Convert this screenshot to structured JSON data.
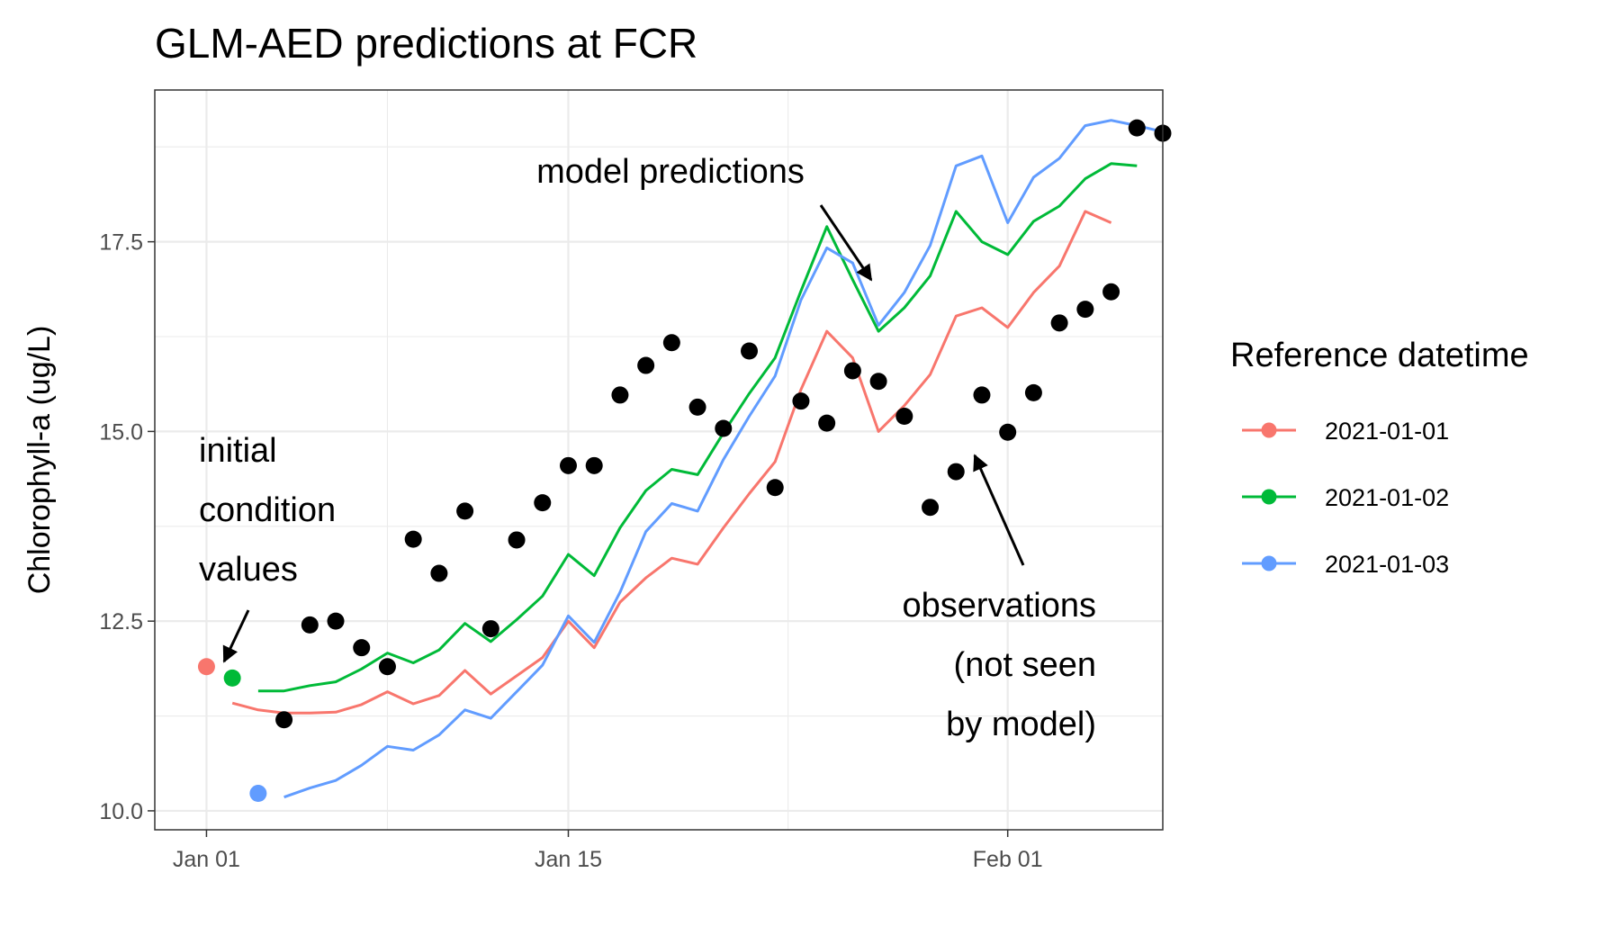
{
  "chart_data": {
    "type": "line",
    "title": "GLM-AED predictions at FCR",
    "xlabel": "",
    "ylabel": "Chlorophyll-a (ug/L)",
    "x_ticks": [
      {
        "date": "2021-01-01",
        "label": "Jan 01"
      },
      {
        "date": "2021-01-15",
        "label": "Jan 15"
      },
      {
        "date": "2021-02-01",
        "label": "Feb 01"
      }
    ],
    "y_ticks": [
      10.0,
      12.5,
      15.0,
      17.5
    ],
    "y_tick_labels": [
      "10.0",
      "12.5",
      "15.0",
      "17.5"
    ],
    "xlim": [
      "2020-12-30",
      "2021-02-07"
    ],
    "ylim": [
      9.75,
      19.5
    ],
    "grid": true,
    "legend": {
      "title": "Reference datetime",
      "position": "right"
    },
    "series": [
      {
        "name": "2021-01-01",
        "color": "#F8766D",
        "initial_condition": {
          "x": "2021-01-01",
          "y": 11.9
        },
        "x": [
          "2021-01-02",
          "2021-01-03",
          "2021-01-04",
          "2021-01-05",
          "2021-01-06",
          "2021-01-07",
          "2021-01-08",
          "2021-01-09",
          "2021-01-10",
          "2021-01-11",
          "2021-01-12",
          "2021-01-13",
          "2021-01-14",
          "2021-01-15",
          "2021-01-16",
          "2021-01-17",
          "2021-01-18",
          "2021-01-19",
          "2021-01-20",
          "2021-01-21",
          "2021-01-22",
          "2021-01-23",
          "2021-01-24",
          "2021-01-25",
          "2021-01-26",
          "2021-01-27",
          "2021-01-28",
          "2021-01-29",
          "2021-01-30",
          "2021-01-31",
          "2021-02-01",
          "2021-02-02",
          "2021-02-03",
          "2021-02-04",
          "2021-02-05"
        ],
        "values": [
          11.42,
          11.33,
          11.29,
          11.29,
          11.3,
          11.4,
          11.57,
          11.41,
          11.52,
          11.85,
          11.54,
          11.78,
          12.02,
          12.5,
          12.15,
          12.75,
          13.07,
          13.33,
          13.25,
          13.73,
          14.18,
          14.6,
          15.55,
          16.32,
          15.97,
          15.0,
          15.34,
          15.75,
          16.52,
          16.63,
          16.37,
          16.83,
          17.18,
          17.9,
          17.75
        ]
      },
      {
        "name": "2021-01-02",
        "color": "#00BA38",
        "initial_condition": {
          "x": "2021-01-02",
          "y": 11.75
        },
        "x": [
          "2021-01-03",
          "2021-01-04",
          "2021-01-05",
          "2021-01-06",
          "2021-01-07",
          "2021-01-08",
          "2021-01-09",
          "2021-01-10",
          "2021-01-11",
          "2021-01-12",
          "2021-01-13",
          "2021-01-14",
          "2021-01-15",
          "2021-01-16",
          "2021-01-17",
          "2021-01-18",
          "2021-01-19",
          "2021-01-20",
          "2021-01-21",
          "2021-01-22",
          "2021-01-23",
          "2021-01-24",
          "2021-01-25",
          "2021-01-26",
          "2021-01-27",
          "2021-01-28",
          "2021-01-29",
          "2021-01-30",
          "2021-01-31",
          "2021-02-01",
          "2021-02-02",
          "2021-02-03",
          "2021-02-04",
          "2021-02-05",
          "2021-02-06"
        ],
        "values": [
          11.58,
          11.58,
          11.65,
          11.7,
          11.87,
          12.08,
          11.95,
          12.12,
          12.47,
          12.23,
          12.52,
          12.83,
          13.38,
          13.1,
          13.73,
          14.22,
          14.5,
          14.43,
          14.98,
          15.5,
          15.97,
          16.85,
          17.7,
          17.0,
          16.32,
          16.63,
          17.05,
          17.9,
          17.5,
          17.33,
          17.77,
          17.97,
          18.33,
          18.53,
          18.5
        ]
      },
      {
        "name": "2021-01-03",
        "color": "#619CFF",
        "initial_condition": {
          "x": "2021-01-03",
          "y": 10.23
        },
        "x": [
          "2021-01-04",
          "2021-01-05",
          "2021-01-06",
          "2021-01-07",
          "2021-01-08",
          "2021-01-09",
          "2021-01-10",
          "2021-01-11",
          "2021-01-12",
          "2021-01-13",
          "2021-01-14",
          "2021-01-15",
          "2021-01-16",
          "2021-01-17",
          "2021-01-18",
          "2021-01-19",
          "2021-01-20",
          "2021-01-21",
          "2021-01-22",
          "2021-01-23",
          "2021-01-24",
          "2021-01-25",
          "2021-01-26",
          "2021-01-27",
          "2021-01-28",
          "2021-01-29",
          "2021-01-30",
          "2021-01-31",
          "2021-02-01",
          "2021-02-02",
          "2021-02-03",
          "2021-02-04",
          "2021-02-05",
          "2021-02-06",
          "2021-02-07"
        ],
        "values": [
          10.18,
          10.3,
          10.4,
          10.6,
          10.85,
          10.8,
          11.0,
          11.33,
          11.22,
          11.57,
          11.92,
          12.57,
          12.22,
          12.88,
          13.68,
          14.05,
          13.95,
          14.63,
          15.2,
          15.73,
          16.73,
          17.42,
          17.22,
          16.4,
          16.83,
          17.45,
          18.5,
          18.63,
          17.75,
          18.35,
          18.6,
          19.03,
          19.1,
          19.03,
          18.95
        ]
      }
    ],
    "observations": {
      "color": "#000000",
      "x": [
        "2021-01-04",
        "2021-01-05",
        "2021-01-06",
        "2021-01-07",
        "2021-01-08",
        "2021-01-09",
        "2021-01-10",
        "2021-01-11",
        "2021-01-12",
        "2021-01-13",
        "2021-01-14",
        "2021-01-15",
        "2021-01-16",
        "2021-01-17",
        "2021-01-18",
        "2021-01-19",
        "2021-01-20",
        "2021-01-21",
        "2021-01-22",
        "2021-01-23",
        "2021-01-24",
        "2021-01-25",
        "2021-01-26",
        "2021-01-27",
        "2021-01-28",
        "2021-01-29",
        "2021-01-30",
        "2021-01-31",
        "2021-02-01",
        "2021-02-02",
        "2021-02-03",
        "2021-02-04",
        "2021-02-05",
        "2021-02-06",
        "2021-02-07"
      ],
      "values": [
        11.2,
        12.45,
        12.5,
        12.15,
        11.9,
        13.58,
        13.13,
        13.95,
        12.4,
        13.57,
        14.06,
        14.55,
        14.55,
        15.48,
        15.87,
        16.17,
        15.32,
        15.04,
        16.06,
        14.26,
        15.4,
        15.11,
        15.8,
        15.66,
        15.2,
        14.0,
        14.47,
        15.48,
        14.99,
        15.51,
        16.43,
        16.61,
        16.84,
        19.0,
        18.93
      ]
    },
    "annotations": [
      {
        "lines": [
          "model predictions"
        ],
        "align": "center"
      },
      {
        "lines": [
          "initial",
          "condition",
          "values"
        ],
        "align": "left"
      },
      {
        "lines": [
          "observations",
          "(not seen",
          "by model)"
        ],
        "align": "right"
      }
    ]
  }
}
